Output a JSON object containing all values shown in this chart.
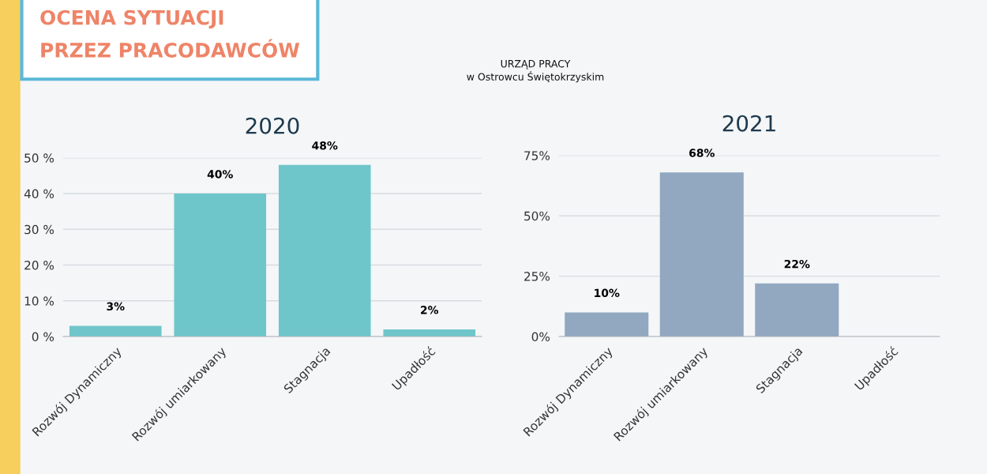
{
  "chart_data": [
    {
      "type": "bar",
      "title": "2020",
      "annotations": [
        "OCENA SYTUACJI\nPRZEZ PRACODAWCÓW",
        "URZĄD PRACY\nw Ostrowcu Świętokrzyskim"
      ],
      "categories": [
        "Rozwój Dynamiczny",
        "Rozwój umiarkowany",
        "Stagnacja",
        "Upadłość"
      ],
      "values": [
        3,
        40,
        48,
        2
      ],
      "value_labels": [
        "3%",
        "40%",
        "48%",
        "2%"
      ],
      "color": "#6ec6ca",
      "ylim": [
        0,
        50
      ],
      "yticks": [
        {
          "value": 0,
          "label": "0 %"
        },
        {
          "value": 10,
          "label": "10 %"
        },
        {
          "value": 20,
          "label": "20 %"
        },
        {
          "value": 30,
          "label": "30 %"
        },
        {
          "value": 40,
          "label": "40 %"
        },
        {
          "value": 50,
          "label": "50 %"
        }
      ],
      "grid": "y"
    },
    {
      "type": "bar",
      "title": "2021",
      "categories": [
        "Rozwój Dynamiczny",
        "Rozwój umiarkowany",
        "Stagnacja",
        "Upadłość"
      ],
      "values": [
        10,
        68,
        22,
        0
      ],
      "value_labels": [
        "10%",
        "68%",
        "22%",
        null
      ],
      "color": "#91a8c0",
      "ylim": [
        0,
        75
      ],
      "yticks": [
        {
          "value": 0,
          "label": "0%"
        },
        {
          "value": 25,
          "label": "25%"
        },
        {
          "value": 50,
          "label": "50%"
        },
        {
          "value": 75,
          "label": "75%"
        }
      ],
      "grid": "y"
    }
  ]
}
